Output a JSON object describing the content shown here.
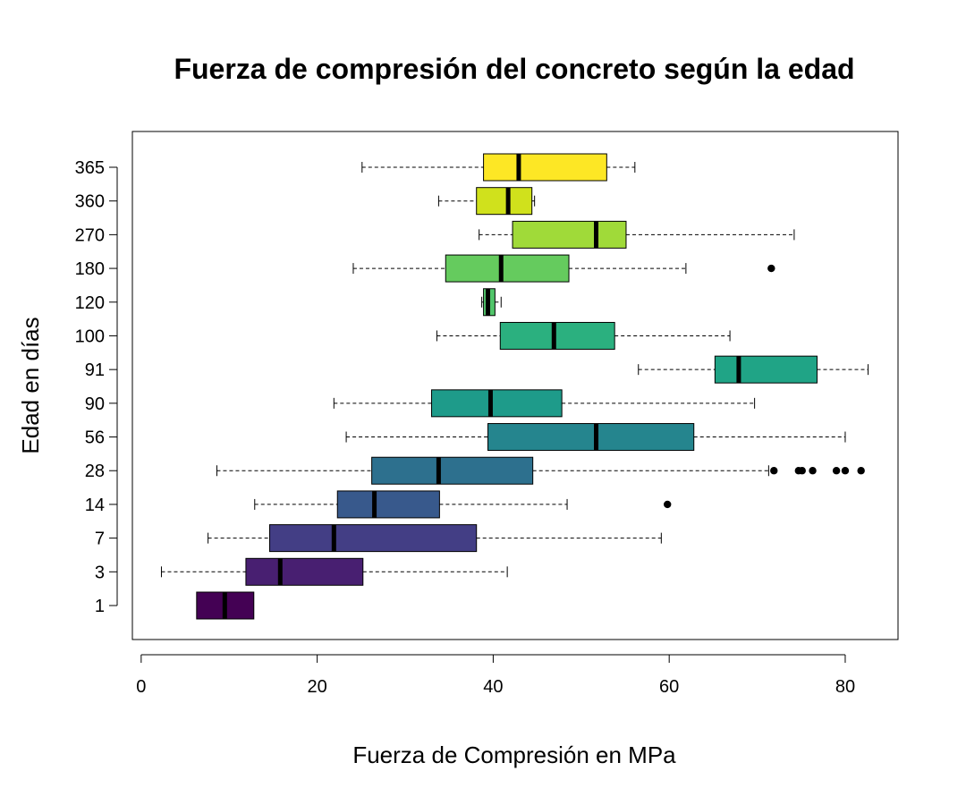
{
  "chart_data": {
    "type": "boxplot",
    "orientation": "horizontal",
    "title": "Fuerza de compresión del concreto según la edad",
    "xlabel": "Fuerza de Compresión en MPa",
    "ylabel": "Edad en días",
    "xlim": [
      -1,
      86
    ],
    "x_ticks": [
      0,
      20,
      40,
      60,
      80
    ],
    "grid": false,
    "legend": "none",
    "categories": [
      "1",
      "3",
      "7",
      "14",
      "28",
      "56",
      "90",
      "91",
      "100",
      "120",
      "180",
      "270",
      "360",
      "365"
    ],
    "series": [
      {
        "category": "1",
        "whisker_low": 6.3,
        "q1": 6.3,
        "median": 9.5,
        "q3": 12.8,
        "whisker_high": 12.8,
        "outliers": [],
        "color": "#440154"
      },
      {
        "category": "3",
        "whisker_low": 2.3,
        "q1": 11.9,
        "median": 15.8,
        "q3": 25.2,
        "whisker_high": 41.6,
        "outliers": [],
        "color": "#481F71"
      },
      {
        "category": "7",
        "whisker_low": 7.6,
        "q1": 14.6,
        "median": 21.9,
        "q3": 38.1,
        "whisker_high": 59.1,
        "outliers": [],
        "color": "#433E85"
      },
      {
        "category": "14",
        "whisker_low": 12.9,
        "q1": 22.3,
        "median": 26.5,
        "q3": 33.9,
        "whisker_high": 48.4,
        "outliers": [
          59.8
        ],
        "color": "#38598C"
      },
      {
        "category": "28",
        "whisker_low": 8.6,
        "q1": 26.2,
        "median": 33.8,
        "q3": 44.5,
        "whisker_high": 71.3,
        "outliers": [
          71.9,
          74.7,
          75.1,
          76.3,
          79.0,
          80.0,
          81.8
        ],
        "color": "#2D708E"
      },
      {
        "category": "56",
        "whisker_low": 23.3,
        "q1": 39.4,
        "median": 51.7,
        "q3": 62.8,
        "whisker_high": 80.0,
        "outliers": [],
        "color": "#25858E"
      },
      {
        "category": "90",
        "whisker_low": 21.9,
        "q1": 33.0,
        "median": 39.7,
        "q3": 47.8,
        "whisker_high": 69.7,
        "outliers": [],
        "color": "#1E9B8A"
      },
      {
        "category": "91",
        "whisker_low": 56.5,
        "q1": 65.2,
        "median": 67.9,
        "q3": 76.8,
        "whisker_high": 82.6,
        "outliers": [],
        "color": "#20A486"
      },
      {
        "category": "100",
        "whisker_low": 33.6,
        "q1": 40.8,
        "median": 46.9,
        "q3": 53.8,
        "whisker_high": 66.9,
        "outliers": [],
        "color": "#2BB07F"
      },
      {
        "category": "120",
        "whisker_low": 38.7,
        "q1": 38.9,
        "median": 39.4,
        "q3": 40.2,
        "whisker_high": 40.9,
        "outliers": [],
        "color": "#51C56A"
      },
      {
        "category": "180",
        "whisker_low": 24.1,
        "q1": 34.6,
        "median": 40.9,
        "q3": 48.6,
        "whisker_high": 61.9,
        "outliers": [
          71.6
        ],
        "color": "#65CB5E"
      },
      {
        "category": "270",
        "whisker_low": 38.4,
        "q1": 42.2,
        "median": 51.7,
        "q3": 55.1,
        "whisker_high": 74.2,
        "outliers": [],
        "color": "#A0DA39"
      },
      {
        "category": "360",
        "whisker_low": 33.8,
        "q1": 38.1,
        "median": 41.7,
        "q3": 44.4,
        "whisker_high": 44.7,
        "outliers": [],
        "color": "#D0E11C"
      },
      {
        "category": "365",
        "whisker_low": 25.1,
        "q1": 38.9,
        "median": 42.9,
        "q3": 52.9,
        "whisker_high": 56.1,
        "outliers": [],
        "color": "#FDE725"
      }
    ]
  }
}
